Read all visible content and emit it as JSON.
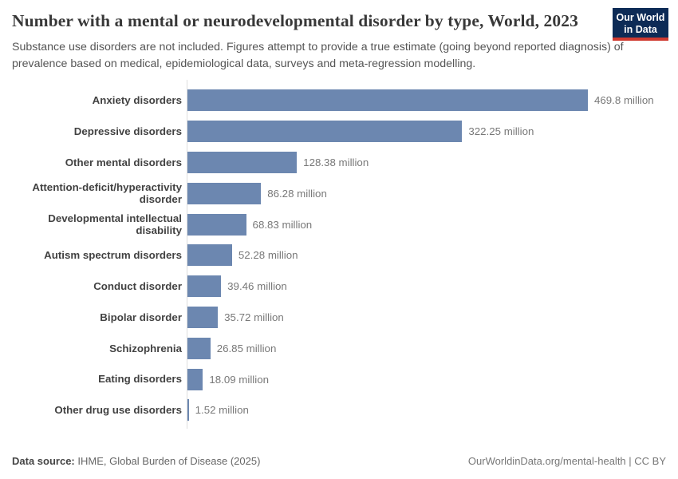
{
  "header": {
    "title": "Number with a mental or neurodevelopmental disorder by type, World, 2023",
    "subtitle": "Substance use disorders are not included. Figures attempt to provide a true estimate (going beyond reported diagnosis) of prevalence based on medical, epidemiological data, surveys and meta-regression modelling.",
    "logo": {
      "line1": "Our World",
      "line2": "in Data"
    }
  },
  "chart_data": {
    "type": "bar",
    "orientation": "horizontal",
    "title": "Number with a mental or neurodevelopmental disorder by type, World, 2023",
    "unit": "million",
    "xlim": [
      0,
      470
    ],
    "grid": false,
    "legend": "none",
    "bar_color": "#6c87b0",
    "categories": [
      "Anxiety disorders",
      "Depressive disorders",
      "Other mental disorders",
      "Attention-deficit/hyperactivity disorder",
      "Developmental intellectual disability",
      "Autism spectrum disorders",
      "Conduct disorder",
      "Bipolar disorder",
      "Schizophrenia",
      "Eating disorders",
      "Other drug use disorders"
    ],
    "values": [
      469.8,
      322.25,
      128.38,
      86.28,
      68.83,
      52.28,
      39.46,
      35.72,
      26.85,
      18.09,
      1.52
    ],
    "value_labels": [
      "469.8 million",
      "322.25 million",
      "128.38 million",
      "86.28 million",
      "68.83 million",
      "52.28 million",
      "39.46 million",
      "35.72 million",
      "26.85 million",
      "18.09 million",
      "1.52 million"
    ]
  },
  "footer": {
    "datasource_label": "Data source:",
    "datasource_value": " IHME, Global Burden of Disease (2025)",
    "credit": "OurWorldinData.org/mental-health | CC BY"
  },
  "colors": {
    "bar": "#6c87b0",
    "title": "#383838",
    "subtitle": "#555555",
    "axis": "#dedede",
    "logo_navy": "#0d2b56",
    "logo_red": "#cf3a30"
  }
}
